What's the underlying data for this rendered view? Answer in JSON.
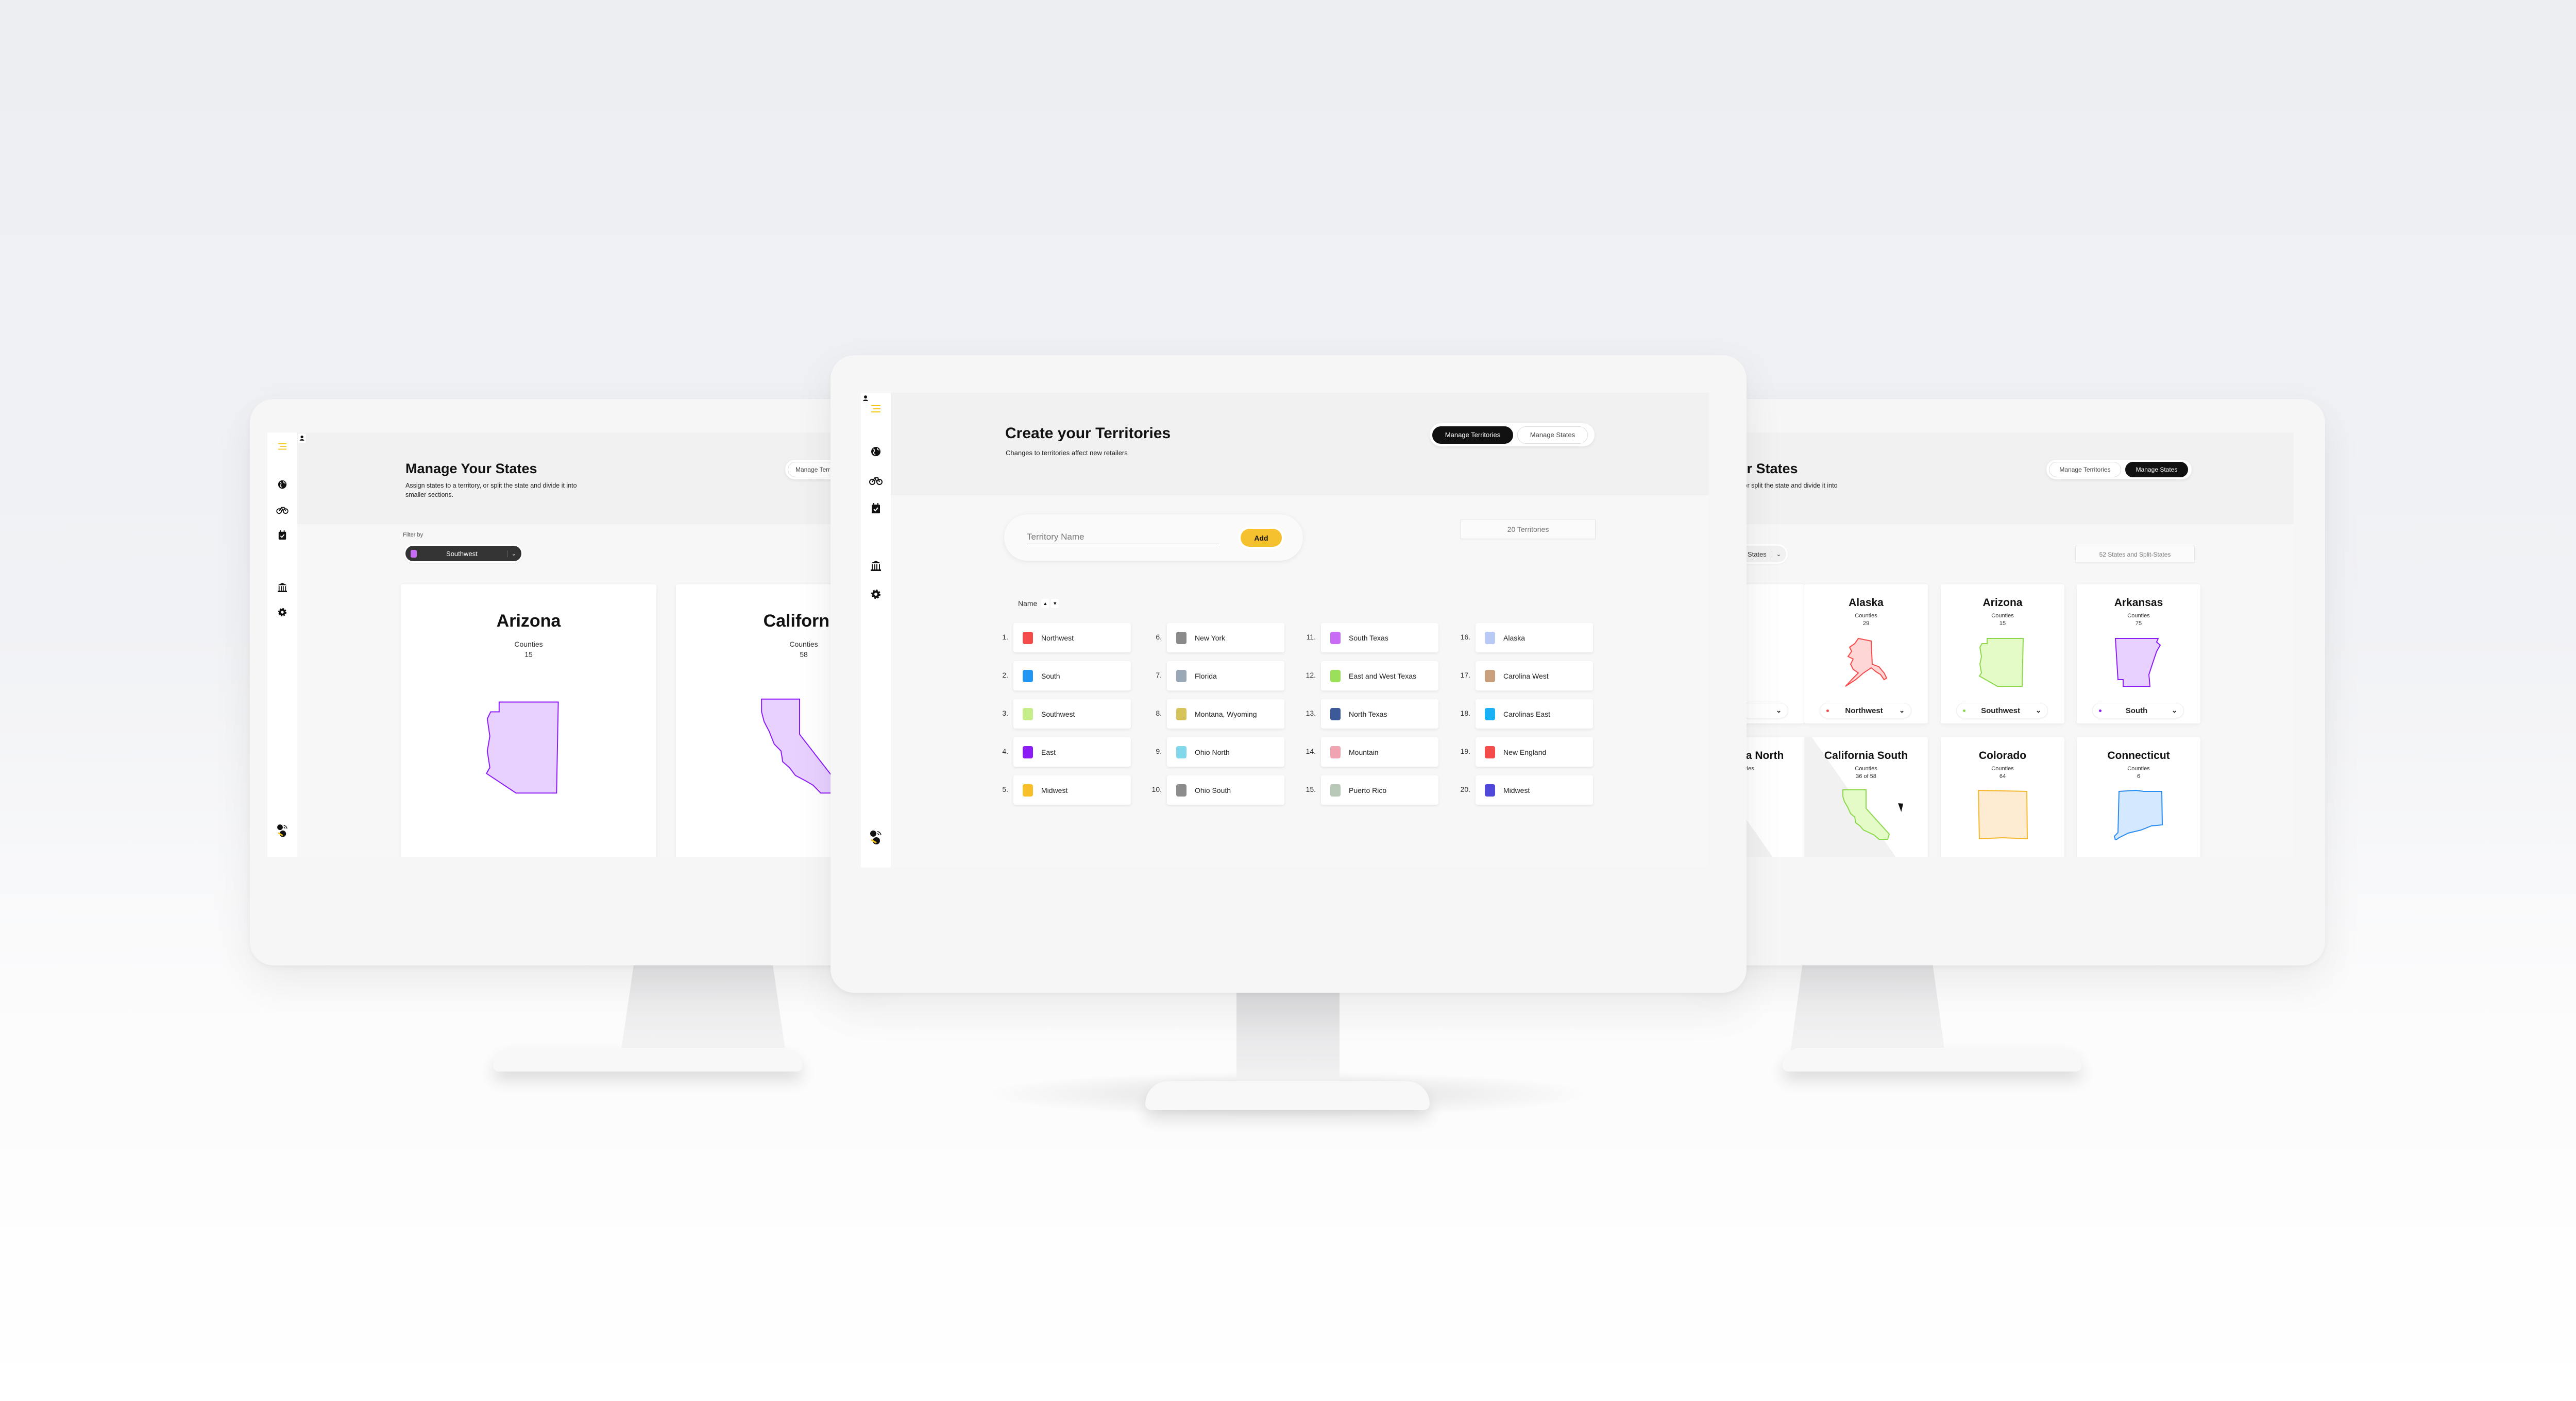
{
  "sidebar": {
    "icons": [
      "menu-icon",
      "globe-icon",
      "bike-icon",
      "calendar-check-icon",
      "contacts-icon",
      "bank-icon",
      "gear-icon",
      "logo-icon"
    ],
    "active": "contacts-icon",
    "accent": "#f5c518"
  },
  "center": {
    "title": "Create your Territories",
    "subtitle": "Changes to territories affect new retailers",
    "toggle": {
      "manage_territories": "Manage Territories",
      "manage_states": "Manage States",
      "active": "Manage Territories"
    },
    "territory_input": {
      "placeholder": "Territory Name",
      "add_label": "Add"
    },
    "count": "20 Territories",
    "sort_label": "Name",
    "territories": [
      {
        "n": "1.",
        "name": "Northwest",
        "color": "#f44b4b"
      },
      {
        "n": "2.",
        "name": "South",
        "color": "#2196f3"
      },
      {
        "n": "3.",
        "name": "Southwest",
        "color": "#c6ef8c"
      },
      {
        "n": "4.",
        "name": "East",
        "color": "#8b1cf5"
      },
      {
        "n": "5.",
        "name": "Midwest",
        "color": "#f7c02a"
      },
      {
        "n": "6.",
        "name": "New York",
        "color": "#8a8a8a"
      },
      {
        "n": "7.",
        "name": "Florida",
        "color": "#9aa7b5"
      },
      {
        "n": "8.",
        "name": "Montana, Wyoming",
        "color": "#d6c35a"
      },
      {
        "n": "9.",
        "name": "Ohio North",
        "color": "#80d8ea"
      },
      {
        "n": "10.",
        "name": "Ohio South",
        "color": "#8c8c8c"
      },
      {
        "n": "11.",
        "name": "South Texas",
        "color": "#c86cf5"
      },
      {
        "n": "12.",
        "name": "East and West Texas",
        "color": "#9be05a"
      },
      {
        "n": "13.",
        "name": "North Texas",
        "color": "#3c5a9a"
      },
      {
        "n": "14.",
        "name": "Mountain",
        "color": "#f0a4b2"
      },
      {
        "n": "15.",
        "name": "Puerto Rico",
        "color": "#b9c9b9"
      },
      {
        "n": "16.",
        "name": "Alaska",
        "color": "#b9c9f5"
      },
      {
        "n": "17.",
        "name": "Carolina West",
        "color": "#c9a07e"
      },
      {
        "n": "18.",
        "name": "Carolinas East",
        "color": "#1ab0f5"
      },
      {
        "n": "19.",
        "name": "New England",
        "color": "#f44b4b"
      },
      {
        "n": "20.",
        "name": "Midwest",
        "color": "#5048d8"
      }
    ]
  },
  "left": {
    "title": "Manage Your States",
    "subtitle_1": "Assign states to a territory, or split the state and divide it into",
    "subtitle_2": "smaller sections.",
    "toggle_label": "Manage Territories",
    "filter_label": "Filter by",
    "filter_value": "Southwest",
    "filter_color": "#c86cf5",
    "cards": [
      {
        "name": "Arizona",
        "counties_label": "Counties",
        "counties": "15",
        "stroke": "#8b1cf5",
        "fill": "#e8d0ff",
        "shape": "arizona"
      },
      {
        "name": "California",
        "counties_label": "Counties",
        "counties": "58",
        "stroke": "#8b1cf5",
        "fill": "#e8d0ff",
        "shape": "california"
      }
    ]
  },
  "right": {
    "title": "Manage Your States",
    "subtitle_1": "Assign states to a territory, or split the state and divide it into",
    "toggle": {
      "manage_territories": "Manage Territories",
      "manage_states": "Manage States",
      "active": "Manage States"
    },
    "filter_value": "All States",
    "count": "52 States and Split-States",
    "cards": [
      {
        "name": "",
        "counties_label": "",
        "counties": "",
        "territory": "",
        "dot": "#ccc",
        "shape": ""
      },
      {
        "name": "Alaska",
        "counties_label": "Counties",
        "counties": "29",
        "territory": "Northwest",
        "dot": "#f44b4b",
        "stroke": "#f44b4b",
        "fill": "#ffd6d6",
        "shape": "alaska"
      },
      {
        "name": "Arizona",
        "counties_label": "Counties",
        "counties": "15",
        "territory": "Southwest",
        "dot": "#8bd84a",
        "stroke": "#8bd84a",
        "fill": "#e4fbc8",
        "shape": "arizona"
      },
      {
        "name": "Arkansas",
        "counties_label": "Counties",
        "counties": "75",
        "territory": "South",
        "dot": "#8b1cf5",
        "stroke": "#8b1cf5",
        "fill": "#e8d0ff",
        "shape": "arkansas"
      },
      {
        "name": "California North",
        "counties_label": "Counties",
        "counties": "",
        "split": true,
        "shape": ""
      },
      {
        "name": "California South",
        "counties_label": "Counties",
        "counties": "36 of 58",
        "split": true,
        "stroke": "#8bd84a",
        "fill": "#e4fbc8",
        "shape": "california"
      },
      {
        "name": "Colorado",
        "counties_label": "Counties",
        "counties": "64",
        "stroke": "#f5b82a",
        "fill": "#fdebd2",
        "shape": "colorado"
      },
      {
        "name": "Connecticut",
        "counties_label": "Counties",
        "counties": "6",
        "stroke": "#2a8cf0",
        "fill": "#d4e8ff",
        "shape": "connecticut"
      }
    ]
  }
}
